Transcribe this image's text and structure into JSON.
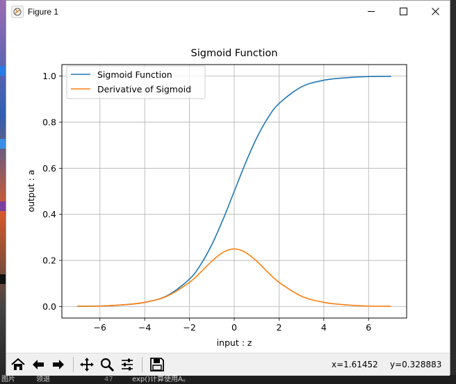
{
  "window": {
    "title": "Figure 1"
  },
  "chart_data": {
    "type": "line",
    "title": "Sigmoid Function",
    "xlabel": "input : z",
    "ylabel": "output : a",
    "xlim": [
      -7.7,
      7.7
    ],
    "ylim": [
      -0.05,
      1.05
    ],
    "xticks": [
      -6,
      -4,
      -2,
      0,
      2,
      4,
      6
    ],
    "xtick_labels": [
      "−6",
      "−4",
      "−2",
      "0",
      "2",
      "4",
      "6"
    ],
    "yticks": [
      0.0,
      0.2,
      0.4,
      0.6,
      0.8,
      1.0
    ],
    "ytick_labels": [
      "0.0",
      "0.2",
      "0.4",
      "0.6",
      "0.8",
      "1.0"
    ],
    "grid": true,
    "legend_position": "upper-left",
    "x": [
      -7,
      -6,
      -5,
      -4,
      -3,
      -2,
      -1.5,
      -1,
      -0.5,
      0,
      0.5,
      1,
      1.5,
      2,
      3,
      4,
      5,
      6,
      7
    ],
    "series": [
      {
        "name": "Sigmoid Function",
        "color": "#1f77b4",
        "values": [
          0.001,
          0.002,
          0.007,
          0.018,
          0.047,
          0.119,
          0.182,
          0.269,
          0.378,
          0.5,
          0.622,
          0.731,
          0.818,
          0.881,
          0.953,
          0.982,
          0.993,
          0.998,
          0.999
        ]
      },
      {
        "name": "Derivative of Sigmoid",
        "color": "#ff7f0e",
        "values": [
          0.001,
          0.002,
          0.007,
          0.018,
          0.045,
          0.105,
          0.149,
          0.197,
          0.235,
          0.25,
          0.235,
          0.197,
          0.149,
          0.105,
          0.045,
          0.018,
          0.007,
          0.002,
          0.001
        ]
      }
    ]
  },
  "toolbar": {
    "x_readout": "x=1.61452",
    "y_readout": "y=0.328883",
    "icons": [
      "home-icon",
      "back-arrow-icon",
      "forward-arrow-icon",
      "pan-icon",
      "zoom-icon",
      "configure-subplots-icon",
      "save-icon"
    ]
  },
  "background": {
    "editor_line_number": "47",
    "editor_text": "exp()计算使用A。",
    "left_text": "图片",
    "left_text2": "领退"
  }
}
